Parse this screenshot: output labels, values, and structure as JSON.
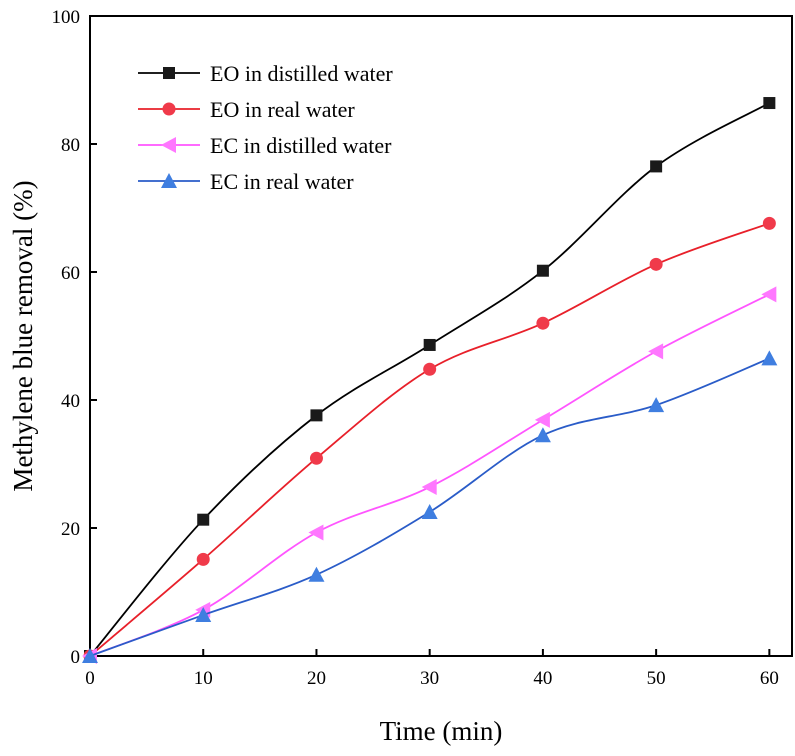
{
  "chart_data": {
    "type": "line",
    "title": "",
    "xlabel": "Time (min)",
    "ylabel": "Methylene blue removal (%)",
    "xlim": [
      0,
      62
    ],
    "ylim": [
      0,
      100
    ],
    "xticks": [
      0,
      10,
      20,
      30,
      40,
      50,
      60
    ],
    "yticks": [
      0,
      20,
      40,
      60,
      80,
      100
    ],
    "grid": false,
    "legend_position": "top-left",
    "series": [
      {
        "name": "EO in distilled water",
        "marker": "square",
        "color": "#000000",
        "markerColor": "#1a1a1a",
        "x": [
          0,
          10,
          20,
          30,
          40,
          50,
          60
        ],
        "y": [
          0,
          21.3,
          37.6,
          48.6,
          60.2,
          76.5,
          86.4
        ]
      },
      {
        "name": "EO in real water",
        "marker": "circle",
        "color": "#e8202a",
        "markerColor": "#f03a4a",
        "x": [
          0,
          10,
          20,
          30,
          40,
          50,
          60
        ],
        "y": [
          0,
          15.1,
          30.9,
          44.8,
          52.0,
          61.2,
          67.6
        ]
      },
      {
        "name": "EC in distilled water",
        "marker": "triangle-left",
        "color": "#ff55ff",
        "markerColor": "#ff77ff",
        "x": [
          0,
          10,
          20,
          30,
          40,
          50,
          60
        ],
        "y": [
          0,
          7.2,
          19.3,
          26.4,
          36.9,
          47.6,
          56.5
        ]
      },
      {
        "name": "EC in real water",
        "marker": "triangle-up",
        "color": "#2a5cc8",
        "markerColor": "#3f7ee0",
        "x": [
          0,
          10,
          20,
          30,
          40,
          50,
          60
        ],
        "y": [
          0,
          6.4,
          12.7,
          22.5,
          34.5,
          39.2,
          46.5
        ]
      }
    ]
  }
}
